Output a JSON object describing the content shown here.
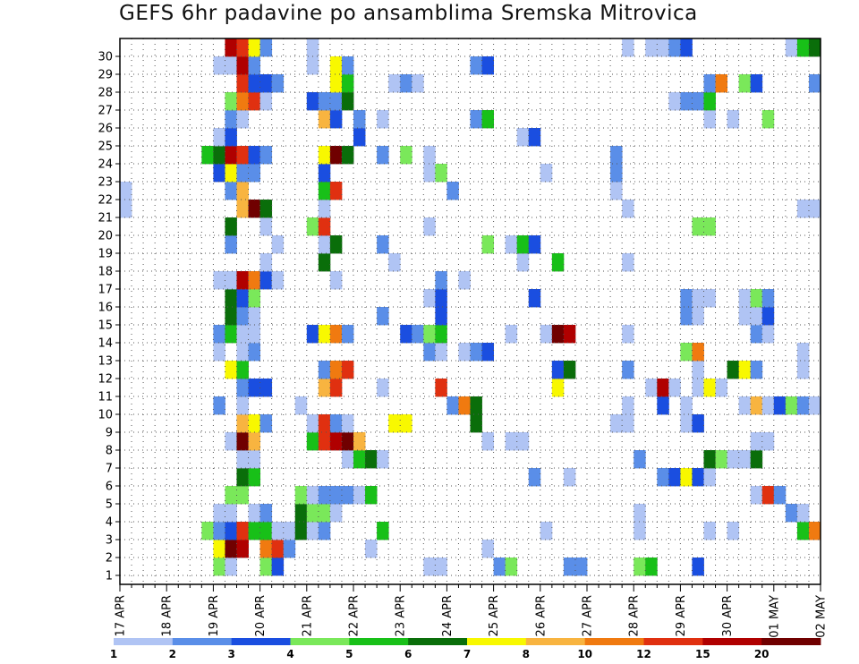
{
  "chart_data": {
    "type": "heatmap",
    "title": "GEFS 6hr padavine po ansamblima Sremska Mitrovica",
    "y_members": [
      "1",
      "2",
      "3",
      "4",
      "5",
      "6",
      "7",
      "8",
      "9",
      "10",
      "11",
      "12",
      "13",
      "14",
      "15",
      "16",
      "17",
      "18",
      "19",
      "20",
      "21",
      "22",
      "23",
      "24",
      "25",
      "26",
      "27",
      "28",
      "29",
      "30"
    ],
    "y_tick_labels": [
      "1",
      "2",
      "3",
      "4",
      "5",
      "6",
      "7",
      "8",
      "9",
      "10",
      "11",
      "12",
      "13",
      "14",
      "15",
      "16",
      "17",
      "18",
      "19",
      "20",
      "21",
      "22",
      "23",
      "24",
      "25",
      "26",
      "27",
      "28",
      "29",
      "30"
    ],
    "x_tick_labels": [
      "17 APR",
      "18 APR",
      "19 APR",
      "20 APR",
      "21 APR",
      "22 APR",
      "23 APR",
      "24 APR",
      "25 APR",
      "26 APR",
      "27 APR",
      "28 APR",
      "29 APR",
      "30 APR",
      "01 MAY",
      "02 MAY"
    ],
    "x_start": "17 APR 00Z",
    "step_hours": 6,
    "n_steps": 60,
    "grid": true,
    "legend_position": "bottom",
    "color_levels": {
      "labels": [
        "1",
        "2",
        "3",
        "4",
        "5",
        "6",
        "7",
        "8",
        "10",
        "12",
        "15",
        "20"
      ],
      "colors": [
        "#b0c4f4",
        "#5a8ee8",
        "#1a4ee0",
        "#7ae85a",
        "#18c018",
        "#0a6e0a",
        "#f8f800",
        "#f8b440",
        "#f07a10",
        "#e03010",
        "#b00000",
        "#700000"
      ]
    },
    "cells": [
      [
        1,
        9,
        4
      ],
      [
        1,
        10,
        1
      ],
      [
        1,
        13,
        4
      ],
      [
        1,
        14,
        3
      ],
      [
        1,
        27,
        1
      ],
      [
        1,
        28,
        1
      ],
      [
        1,
        33,
        2
      ],
      [
        1,
        34,
        4
      ],
      [
        1,
        39,
        2
      ],
      [
        1,
        40,
        2
      ],
      [
        1,
        45,
        4
      ],
      [
        1,
        46,
        5
      ],
      [
        1,
        50,
        3
      ],
      [
        2,
        9,
        7
      ],
      [
        2,
        10,
        12
      ],
      [
        2,
        11,
        11
      ],
      [
        2,
        13,
        9
      ],
      [
        2,
        14,
        10
      ],
      [
        2,
        15,
        2
      ],
      [
        2,
        22,
        1
      ],
      [
        2,
        32,
        1
      ],
      [
        3,
        8,
        4
      ],
      [
        3,
        9,
        2
      ],
      [
        3,
        10,
        3
      ],
      [
        3,
        11,
        10
      ],
      [
        3,
        12,
        5
      ],
      [
        3,
        13,
        5
      ],
      [
        3,
        14,
        1
      ],
      [
        3,
        15,
        1
      ],
      [
        3,
        16,
        6
      ],
      [
        3,
        17,
        1
      ],
      [
        3,
        18,
        2
      ],
      [
        3,
        23,
        5
      ],
      [
        3,
        37,
        1
      ],
      [
        3,
        45,
        1
      ],
      [
        3,
        51,
        1
      ],
      [
        3,
        53,
        1
      ],
      [
        3,
        59,
        5
      ],
      [
        3,
        60,
        9
      ],
      [
        4,
        9,
        1
      ],
      [
        4,
        10,
        1
      ],
      [
        4,
        12,
        1
      ],
      [
        4,
        13,
        2
      ],
      [
        4,
        16,
        6
      ],
      [
        4,
        17,
        4
      ],
      [
        4,
        18,
        4
      ],
      [
        4,
        19,
        1
      ],
      [
        4,
        45,
        1
      ],
      [
        4,
        58,
        2
      ],
      [
        4,
        59,
        1
      ],
      [
        5,
        10,
        4
      ],
      [
        5,
        11,
        4
      ],
      [
        5,
        16,
        4
      ],
      [
        5,
        17,
        1
      ],
      [
        5,
        18,
        2
      ],
      [
        5,
        19,
        2
      ],
      [
        5,
        20,
        2
      ],
      [
        5,
        21,
        1
      ],
      [
        5,
        22,
        5
      ],
      [
        5,
        55,
        1
      ],
      [
        5,
        56,
        10
      ],
      [
        5,
        57,
        2
      ],
      [
        6,
        11,
        6
      ],
      [
        6,
        12,
        5
      ],
      [
        6,
        36,
        2
      ],
      [
        6,
        39,
        1
      ],
      [
        6,
        47,
        2
      ],
      [
        6,
        48,
        3
      ],
      [
        6,
        49,
        7
      ],
      [
        6,
        50,
        3
      ],
      [
        6,
        51,
        1
      ],
      [
        7,
        11,
        1
      ],
      [
        7,
        12,
        1
      ],
      [
        7,
        20,
        1
      ],
      [
        7,
        21,
        5
      ],
      [
        7,
        22,
        6
      ],
      [
        7,
        23,
        1
      ],
      [
        7,
        45,
        2
      ],
      [
        7,
        51,
        6
      ],
      [
        7,
        52,
        4
      ],
      [
        7,
        53,
        1
      ],
      [
        7,
        54,
        1
      ],
      [
        7,
        55,
        6
      ],
      [
        8,
        10,
        1
      ],
      [
        8,
        11,
        12
      ],
      [
        8,
        12,
        8
      ],
      [
        8,
        17,
        5
      ],
      [
        8,
        18,
        10
      ],
      [
        8,
        19,
        11
      ],
      [
        8,
        20,
        12
      ],
      [
        8,
        21,
        8
      ],
      [
        8,
        32,
        1
      ],
      [
        8,
        34,
        1
      ],
      [
        8,
        35,
        1
      ],
      [
        8,
        55,
        1
      ],
      [
        8,
        56,
        1
      ],
      [
        9,
        11,
        8
      ],
      [
        9,
        12,
        7
      ],
      [
        9,
        13,
        2
      ],
      [
        9,
        17,
        1
      ],
      [
        9,
        18,
        10
      ],
      [
        9,
        19,
        2
      ],
      [
        9,
        20,
        1
      ],
      [
        9,
        24,
        7
      ],
      [
        9,
        25,
        7
      ],
      [
        9,
        31,
        6
      ],
      [
        9,
        43,
        1
      ],
      [
        9,
        44,
        1
      ],
      [
        9,
        49,
        1
      ],
      [
        9,
        50,
        3
      ],
      [
        10,
        9,
        2
      ],
      [
        10,
        11,
        1
      ],
      [
        10,
        16,
        1
      ],
      [
        10,
        29,
        2
      ],
      [
        10,
        30,
        9
      ],
      [
        10,
        31,
        6
      ],
      [
        10,
        44,
        1
      ],
      [
        10,
        47,
        3
      ],
      [
        10,
        49,
        1
      ],
      [
        10,
        54,
        1
      ],
      [
        10,
        55,
        8
      ],
      [
        10,
        56,
        1
      ],
      [
        10,
        57,
        3
      ],
      [
        10,
        58,
        4
      ],
      [
        10,
        59,
        2
      ],
      [
        10,
        60,
        1
      ],
      [
        11,
        11,
        2
      ],
      [
        11,
        12,
        3
      ],
      [
        11,
        13,
        3
      ],
      [
        11,
        18,
        8
      ],
      [
        11,
        19,
        10
      ],
      [
        11,
        23,
        1
      ],
      [
        11,
        28,
        10
      ],
      [
        11,
        38,
        7
      ],
      [
        11,
        46,
        1
      ],
      [
        11,
        47,
        11
      ],
      [
        11,
        48,
        1
      ],
      [
        11,
        50,
        1
      ],
      [
        11,
        51,
        7
      ],
      [
        11,
        52,
        1
      ],
      [
        12,
        10,
        7
      ],
      [
        12,
        11,
        5
      ],
      [
        12,
        18,
        2
      ],
      [
        12,
        19,
        9
      ],
      [
        12,
        20,
        10
      ],
      [
        12,
        38,
        3
      ],
      [
        12,
        39,
        6
      ],
      [
        12,
        44,
        2
      ],
      [
        12,
        50,
        1
      ],
      [
        12,
        53,
        6
      ],
      [
        12,
        54,
        7
      ],
      [
        12,
        55,
        2
      ],
      [
        12,
        59,
        1
      ],
      [
        13,
        9,
        1
      ],
      [
        13,
        11,
        1
      ],
      [
        13,
        12,
        2
      ],
      [
        13,
        27,
        2
      ],
      [
        13,
        28,
        1
      ],
      [
        13,
        30,
        1
      ],
      [
        13,
        31,
        2
      ],
      [
        13,
        32,
        3
      ],
      [
        13,
        49,
        4
      ],
      [
        13,
        50,
        9
      ],
      [
        13,
        59,
        1
      ],
      [
        14,
        9,
        2
      ],
      [
        14,
        10,
        5
      ],
      [
        14,
        11,
        1
      ],
      [
        14,
        12,
        1
      ],
      [
        14,
        17,
        3
      ],
      [
        14,
        18,
        7
      ],
      [
        14,
        19,
        9
      ],
      [
        14,
        20,
        2
      ],
      [
        14,
        25,
        3
      ],
      [
        14,
        26,
        2
      ],
      [
        14,
        27,
        4
      ],
      [
        14,
        28,
        5
      ],
      [
        14,
        34,
        1
      ],
      [
        14,
        37,
        1
      ],
      [
        14,
        38,
        12
      ],
      [
        14,
        39,
        11
      ],
      [
        14,
        44,
        1
      ],
      [
        14,
        55,
        2
      ],
      [
        14,
        56,
        1
      ],
      [
        15,
        10,
        6
      ],
      [
        15,
        11,
        2
      ],
      [
        15,
        12,
        1
      ],
      [
        15,
        23,
        2
      ],
      [
        15,
        28,
        3
      ],
      [
        15,
        49,
        2
      ],
      [
        15,
        50,
        1
      ],
      [
        15,
        54,
        1
      ],
      [
        15,
        55,
        1
      ],
      [
        15,
        56,
        3
      ],
      [
        16,
        10,
        6
      ],
      [
        16,
        11,
        3
      ],
      [
        16,
        12,
        4
      ],
      [
        16,
        27,
        1
      ],
      [
        16,
        28,
        3
      ],
      [
        16,
        36,
        3
      ],
      [
        16,
        49,
        2
      ],
      [
        16,
        50,
        1
      ],
      [
        16,
        51,
        1
      ],
      [
        16,
        54,
        1
      ],
      [
        16,
        55,
        4
      ],
      [
        16,
        56,
        2
      ],
      [
        17,
        9,
        1
      ],
      [
        17,
        10,
        1
      ],
      [
        17,
        11,
        11
      ],
      [
        17,
        12,
        9
      ],
      [
        17,
        13,
        3
      ],
      [
        17,
        14,
        1
      ],
      [
        17,
        19,
        1
      ],
      [
        17,
        28,
        2
      ],
      [
        17,
        30,
        1
      ],
      [
        18,
        13,
        1
      ],
      [
        18,
        18,
        6
      ],
      [
        18,
        24,
        1
      ],
      [
        18,
        35,
        1
      ],
      [
        18,
        38,
        5
      ],
      [
        18,
        44,
        1
      ],
      [
        19,
        10,
        2
      ],
      [
        19,
        14,
        1
      ],
      [
        19,
        18,
        1
      ],
      [
        19,
        19,
        6
      ],
      [
        19,
        23,
        2
      ],
      [
        19,
        32,
        4
      ],
      [
        19,
        34,
        1
      ],
      [
        19,
        35,
        5
      ],
      [
        19,
        36,
        3
      ],
      [
        20,
        10,
        6
      ],
      [
        20,
        13,
        1
      ],
      [
        20,
        17,
        4
      ],
      [
        20,
        18,
        10
      ],
      [
        20,
        27,
        1
      ],
      [
        20,
        50,
        4
      ],
      [
        20,
        51,
        4
      ],
      [
        21,
        1,
        1
      ],
      [
        21,
        11,
        8
      ],
      [
        21,
        12,
        12
      ],
      [
        21,
        13,
        6
      ],
      [
        21,
        18,
        1
      ],
      [
        21,
        44,
        1
      ],
      [
        21,
        59,
        1
      ],
      [
        21,
        60,
        1
      ],
      [
        22,
        1,
        1
      ],
      [
        22,
        10,
        2
      ],
      [
        22,
        11,
        8
      ],
      [
        22,
        18,
        5
      ],
      [
        22,
        19,
        10
      ],
      [
        22,
        29,
        2
      ],
      [
        22,
        43,
        1
      ],
      [
        23,
        9,
        3
      ],
      [
        23,
        10,
        7
      ],
      [
        23,
        11,
        2
      ],
      [
        23,
        12,
        2
      ],
      [
        23,
        18,
        3
      ],
      [
        23,
        27,
        1
      ],
      [
        23,
        28,
        4
      ],
      [
        23,
        37,
        1
      ],
      [
        23,
        43,
        2
      ],
      [
        24,
        8,
        5
      ],
      [
        24,
        9,
        6
      ],
      [
        24,
        10,
        11
      ],
      [
        24,
        11,
        10
      ],
      [
        24,
        12,
        3
      ],
      [
        24,
        13,
        2
      ],
      [
        24,
        18,
        7
      ],
      [
        24,
        19,
        12
      ],
      [
        24,
        20,
        6
      ],
      [
        24,
        23,
        2
      ],
      [
        24,
        25,
        4
      ],
      [
        24,
        27,
        1
      ],
      [
        24,
        43,
        2
      ],
      [
        25,
        9,
        1
      ],
      [
        25,
        10,
        3
      ],
      [
        25,
        21,
        3
      ],
      [
        25,
        35,
        1
      ],
      [
        25,
        36,
        3
      ],
      [
        26,
        10,
        2
      ],
      [
        26,
        11,
        1
      ],
      [
        26,
        18,
        8
      ],
      [
        26,
        19,
        3
      ],
      [
        26,
        21,
        2
      ],
      [
        26,
        23,
        1
      ],
      [
        26,
        31,
        2
      ],
      [
        26,
        32,
        5
      ],
      [
        26,
        51,
        1
      ],
      [
        26,
        53,
        1
      ],
      [
        26,
        56,
        4
      ],
      [
        27,
        10,
        4
      ],
      [
        27,
        11,
        9
      ],
      [
        27,
        12,
        10
      ],
      [
        27,
        13,
        1
      ],
      [
        27,
        17,
        3
      ],
      [
        27,
        18,
        2
      ],
      [
        27,
        19,
        2
      ],
      [
        27,
        20,
        6
      ],
      [
        27,
        48,
        1
      ],
      [
        27,
        49,
        2
      ],
      [
        27,
        50,
        2
      ],
      [
        27,
        51,
        5
      ],
      [
        28,
        11,
        10
      ],
      [
        28,
        12,
        3
      ],
      [
        28,
        13,
        3
      ],
      [
        28,
        14,
        2
      ],
      [
        28,
        19,
        7
      ],
      [
        28,
        20,
        5
      ],
      [
        28,
        24,
        1
      ],
      [
        28,
        25,
        2
      ],
      [
        28,
        26,
        1
      ],
      [
        28,
        51,
        2
      ],
      [
        28,
        52,
        9
      ],
      [
        28,
        54,
        4
      ],
      [
        28,
        55,
        3
      ],
      [
        28,
        60,
        2
      ],
      [
        29,
        9,
        1
      ],
      [
        29,
        10,
        1
      ],
      [
        29,
        11,
        11
      ],
      [
        29,
        12,
        2
      ],
      [
        29,
        17,
        1
      ],
      [
        29,
        19,
        7
      ],
      [
        29,
        20,
        2
      ],
      [
        29,
        31,
        2
      ],
      [
        29,
        32,
        3
      ],
      [
        30,
        10,
        11
      ],
      [
        30,
        11,
        10
      ],
      [
        30,
        12,
        7
      ],
      [
        30,
        13,
        2
      ],
      [
        30,
        17,
        1
      ],
      [
        30,
        44,
        1
      ],
      [
        30,
        46,
        1
      ],
      [
        30,
        47,
        1
      ],
      [
        30,
        48,
        2
      ],
      [
        30,
        49,
        3
      ],
      [
        30,
        58,
        1
      ],
      [
        30,
        59,
        5
      ],
      [
        30,
        60,
        6
      ]
    ]
  }
}
